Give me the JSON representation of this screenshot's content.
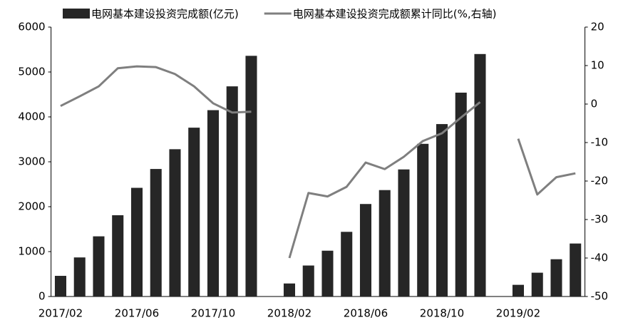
{
  "chart_data": {
    "type": "bar-line",
    "categories": [
      "2017/02",
      null,
      null,
      null,
      "2017/06",
      null,
      null,
      null,
      "2017/10",
      null,
      null,
      null,
      "2018/02",
      null,
      null,
      null,
      "2018/06",
      null,
      null,
      null,
      "2018/10",
      null,
      null,
      null,
      "2019/02",
      null,
      null,
      null
    ],
    "series": [
      {
        "name": "电网基本建设投资完成额(亿元)",
        "type": "bar",
        "color": "#262626",
        "values": [
          460,
          870,
          1340,
          1810,
          2420,
          2840,
          3280,
          3760,
          4150,
          4680,
          5360,
          null,
          290,
          690,
          1020,
          1440,
          2060,
          2370,
          2830,
          3400,
          3840,
          4540,
          5400,
          null,
          260,
          530,
          830,
          1180
        ]
      },
      {
        "name": "电网基本建设投资完成额累计同比(%,右轴)",
        "type": "line",
        "axis": "y2",
        "color": "#7f7f7f",
        "values": [
          -0.5,
          2,
          4.6,
          9.3,
          9.8,
          9.6,
          7.8,
          4.6,
          0.2,
          -2.2,
          -2,
          null,
          -40,
          -23.1,
          -24,
          -21.5,
          -15.2,
          -16.9,
          -13.7,
          -9.6,
          -7.6,
          -3.5,
          0.5,
          null,
          -9,
          -23.5,
          -19,
          -18
        ]
      }
    ],
    "ylim": [
      0,
      6000
    ],
    "yticks": [
      0,
      1000,
      2000,
      3000,
      4000,
      5000,
      6000
    ],
    "y2lim": [
      -50,
      20
    ],
    "y2ticks": [
      -50,
      -40,
      -30,
      -20,
      -10,
      0,
      10,
      20
    ],
    "legend": "top"
  }
}
